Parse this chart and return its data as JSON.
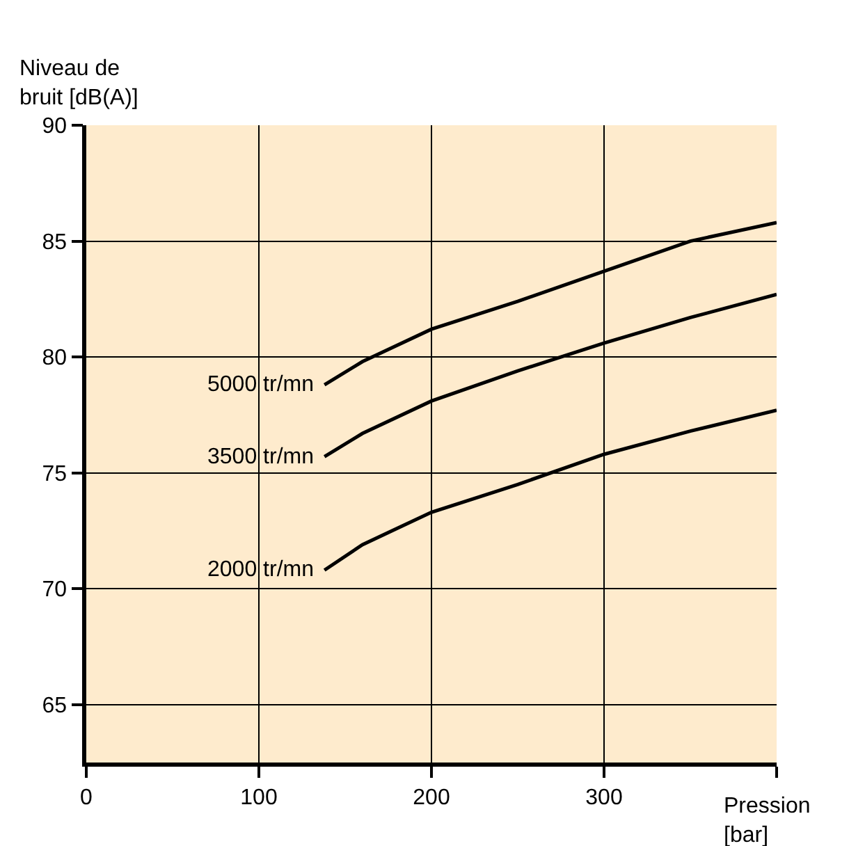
{
  "chart_data": {
    "type": "line",
    "xlabel": "Pression\n[bar]",
    "ylabel": "Niveau de\nbruit [dB(A)]",
    "xlim": [
      0,
      400
    ],
    "ylim": [
      62.5,
      90
    ],
    "xticks": [
      0,
      100,
      200,
      300,
      {
        "value": 400,
        "label": null
      }
    ],
    "yticks": [
      65,
      70,
      75,
      80,
      85,
      90
    ],
    "grid": true,
    "legend": false,
    "marker": "none",
    "line_style": "solid",
    "series": [
      {
        "name": "5000 tr/mn",
        "color": "#000000",
        "x": [
          138,
          160,
          200,
          250,
          300,
          350,
          400
        ],
        "values": [
          78.8,
          79.8,
          81.2,
          82.4,
          83.7,
          85.0,
          85.8
        ]
      },
      {
        "name": "3500 tr/mn",
        "color": "#000000",
        "x": [
          138,
          160,
          200,
          250,
          300,
          350,
          400
        ],
        "values": [
          75.7,
          76.7,
          78.1,
          79.4,
          80.6,
          81.7,
          82.7
        ]
      },
      {
        "name": "2000 tr/mn",
        "color": "#000000",
        "x": [
          138,
          160,
          200,
          250,
          300,
          350,
          400
        ],
        "values": [
          70.8,
          71.9,
          73.3,
          74.5,
          75.8,
          76.8,
          77.7
        ]
      }
    ]
  }
}
